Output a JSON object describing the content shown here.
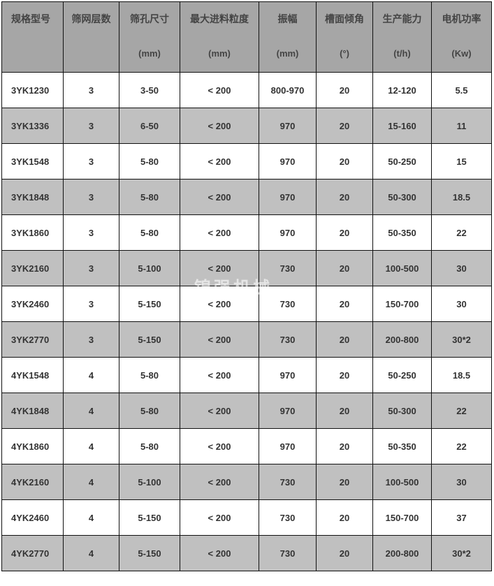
{
  "headers": [
    {
      "label": "规格型号",
      "unit": ""
    },
    {
      "label": "筛网层数",
      "unit": ""
    },
    {
      "label": "筛孔尺寸",
      "unit": "(mm)"
    },
    {
      "label": "最大进料粒度",
      "unit": "(mm)"
    },
    {
      "label": "振幅",
      "unit": "(mm)"
    },
    {
      "label": "槽面倾角",
      "unit": "(°)"
    },
    {
      "label": "生产能力",
      "unit": "(t/h)"
    },
    {
      "label": "电机功率",
      "unit": "(Kw)"
    }
  ],
  "rows": [
    [
      "3YK1230",
      "3",
      "3-50",
      "< 200",
      "800-970",
      "20",
      "12-120",
      "5.5"
    ],
    [
      "3YK1336",
      "3",
      "6-50",
      "< 200",
      "970",
      "20",
      "15-160",
      "11"
    ],
    [
      "3YK1548",
      "3",
      "5-80",
      "< 200",
      "970",
      "20",
      "50-250",
      "15"
    ],
    [
      "3YK1848",
      "3",
      "5-80",
      "< 200",
      "970",
      "20",
      "50-300",
      "18.5"
    ],
    [
      "3YK1860",
      "3",
      "5-80",
      "< 200",
      "970",
      "20",
      "50-350",
      "22"
    ],
    [
      "3YK2160",
      "3",
      "5-100",
      "< 200",
      "730",
      "20",
      "100-500",
      "30"
    ],
    [
      "3YK2460",
      "3",
      "5-150",
      "< 200",
      "730",
      "20",
      "150-700",
      "30"
    ],
    [
      "3YK2770",
      "3",
      "5-150",
      "< 200",
      "730",
      "20",
      "200-800",
      "30*2"
    ],
    [
      "4YK1548",
      "4",
      "5-80",
      "< 200",
      "970",
      "20",
      "50-250",
      "18.5"
    ],
    [
      "4YK1848",
      "4",
      "5-80",
      "< 200",
      "970",
      "20",
      "50-300",
      "22"
    ],
    [
      "4YK1860",
      "4",
      "5-80",
      "< 200",
      "970",
      "20",
      "50-350",
      "22"
    ],
    [
      "4YK2160",
      "4",
      "5-100",
      "< 200",
      "730",
      "20",
      "100-500",
      "30"
    ],
    [
      "4YK2460",
      "4",
      "5-150",
      "< 200",
      "730",
      "20",
      "150-700",
      "37"
    ],
    [
      "4YK2770",
      "4",
      "5-150",
      "< 200",
      "730",
      "20",
      "200-800",
      "30*2"
    ]
  ],
  "watermark": "锦强机械",
  "colors": {
    "header_bg": "#a6a6a6",
    "alt_row_bg": "#c0c0c0",
    "border": "#111111"
  }
}
